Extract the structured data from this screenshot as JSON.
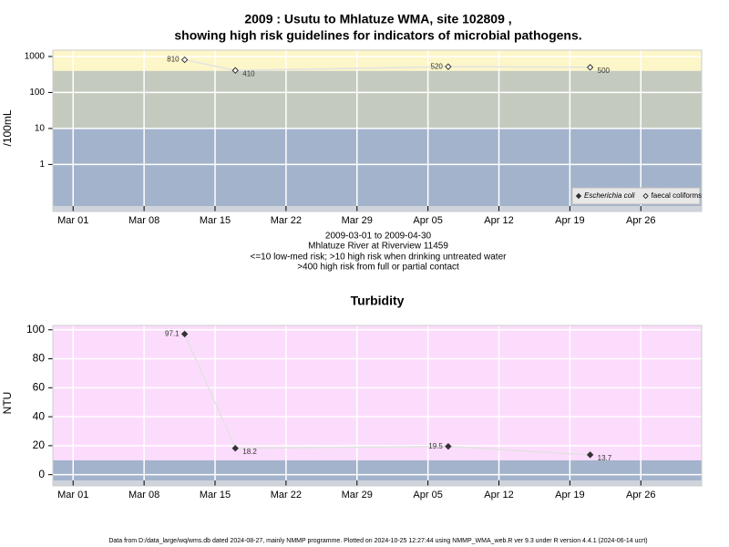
{
  "chart_data": [
    {
      "type": "line",
      "title": [
        "2009 : Usutu to Mhlatuze WMA, site 102809 ,",
        "showing high risk guidelines for indicators of microbial pathogens."
      ],
      "notes": [
        "2009-03-01 to 2009-04-30",
        "Mhlatuze River at Riverview 11459",
        "<=10 low-med risk; >10 high risk when drinking untreated water",
        ">400 high risk from full or partial contact"
      ],
      "ylabel": "/100mL",
      "x": [
        "Mar 12",
        "Mar 17",
        "Apr 07",
        "Apr 21"
      ],
      "series": [
        {
          "name": "Escherichia coli",
          "color": "#333333",
          "marker": "filled",
          "values": [
            null,
            null,
            null,
            null
          ]
        },
        {
          "name": "faecal coliforms",
          "color": "#333333",
          "marker": "open",
          "values": [
            810,
            410,
            520,
            500
          ]
        }
      ],
      "line_color": "#e2e2e2",
      "log_y": true,
      "ylim": [
        0.07,
        1500
      ],
      "yticks": [
        1,
        10,
        100,
        1000
      ],
      "xlim": [
        "Feb 27",
        "May 02"
      ],
      "xticks": [
        "Mar 01",
        "Mar 08",
        "Mar 15",
        "Mar 22",
        "Mar 29",
        "Apr 05",
        "Apr 12",
        "Apr 19",
        "Apr 26"
      ],
      "band_breaks": [
        10,
        400
      ],
      "band_colors": [
        "#a3b3cc",
        "#c4cbbe",
        "#fdf6c8"
      ],
      "grid": true,
      "legend": "bottom-right"
    },
    {
      "type": "line",
      "title": "Turbidity",
      "ylabel": "NTU",
      "x": [
        "Mar 12",
        "Mar 17",
        "Apr 07",
        "Apr 21"
      ],
      "values": [
        97.1,
        18.2,
        19.5,
        13.7
      ],
      "color": "#333333",
      "marker": "filled",
      "line_color": "#e2e2e2",
      "log_y": false,
      "ylim": [
        -4,
        103
      ],
      "yticks": [
        0,
        20,
        40,
        60,
        80,
        100
      ],
      "xlim": [
        "Feb 27",
        "May 02"
      ],
      "xticks": [
        "Mar 01",
        "Mar 08",
        "Mar 15",
        "Mar 22",
        "Mar 29",
        "Apr 05",
        "Apr 12",
        "Apr 19",
        "Apr 26"
      ],
      "band_breaks": [
        10
      ],
      "band_colors": [
        "#a3b3cc",
        "#fcdcfc"
      ],
      "grid": true
    }
  ],
  "footer": "Data from D:/data_large/wq/wms.db dated 2024-08-27, mainly NMMP programme. Plotted on 2024-10-25 12:27:44 using NMMP_WMA_web.R ver 9.3 under R version 4.4.1 (2024-06-14 ucrt)"
}
